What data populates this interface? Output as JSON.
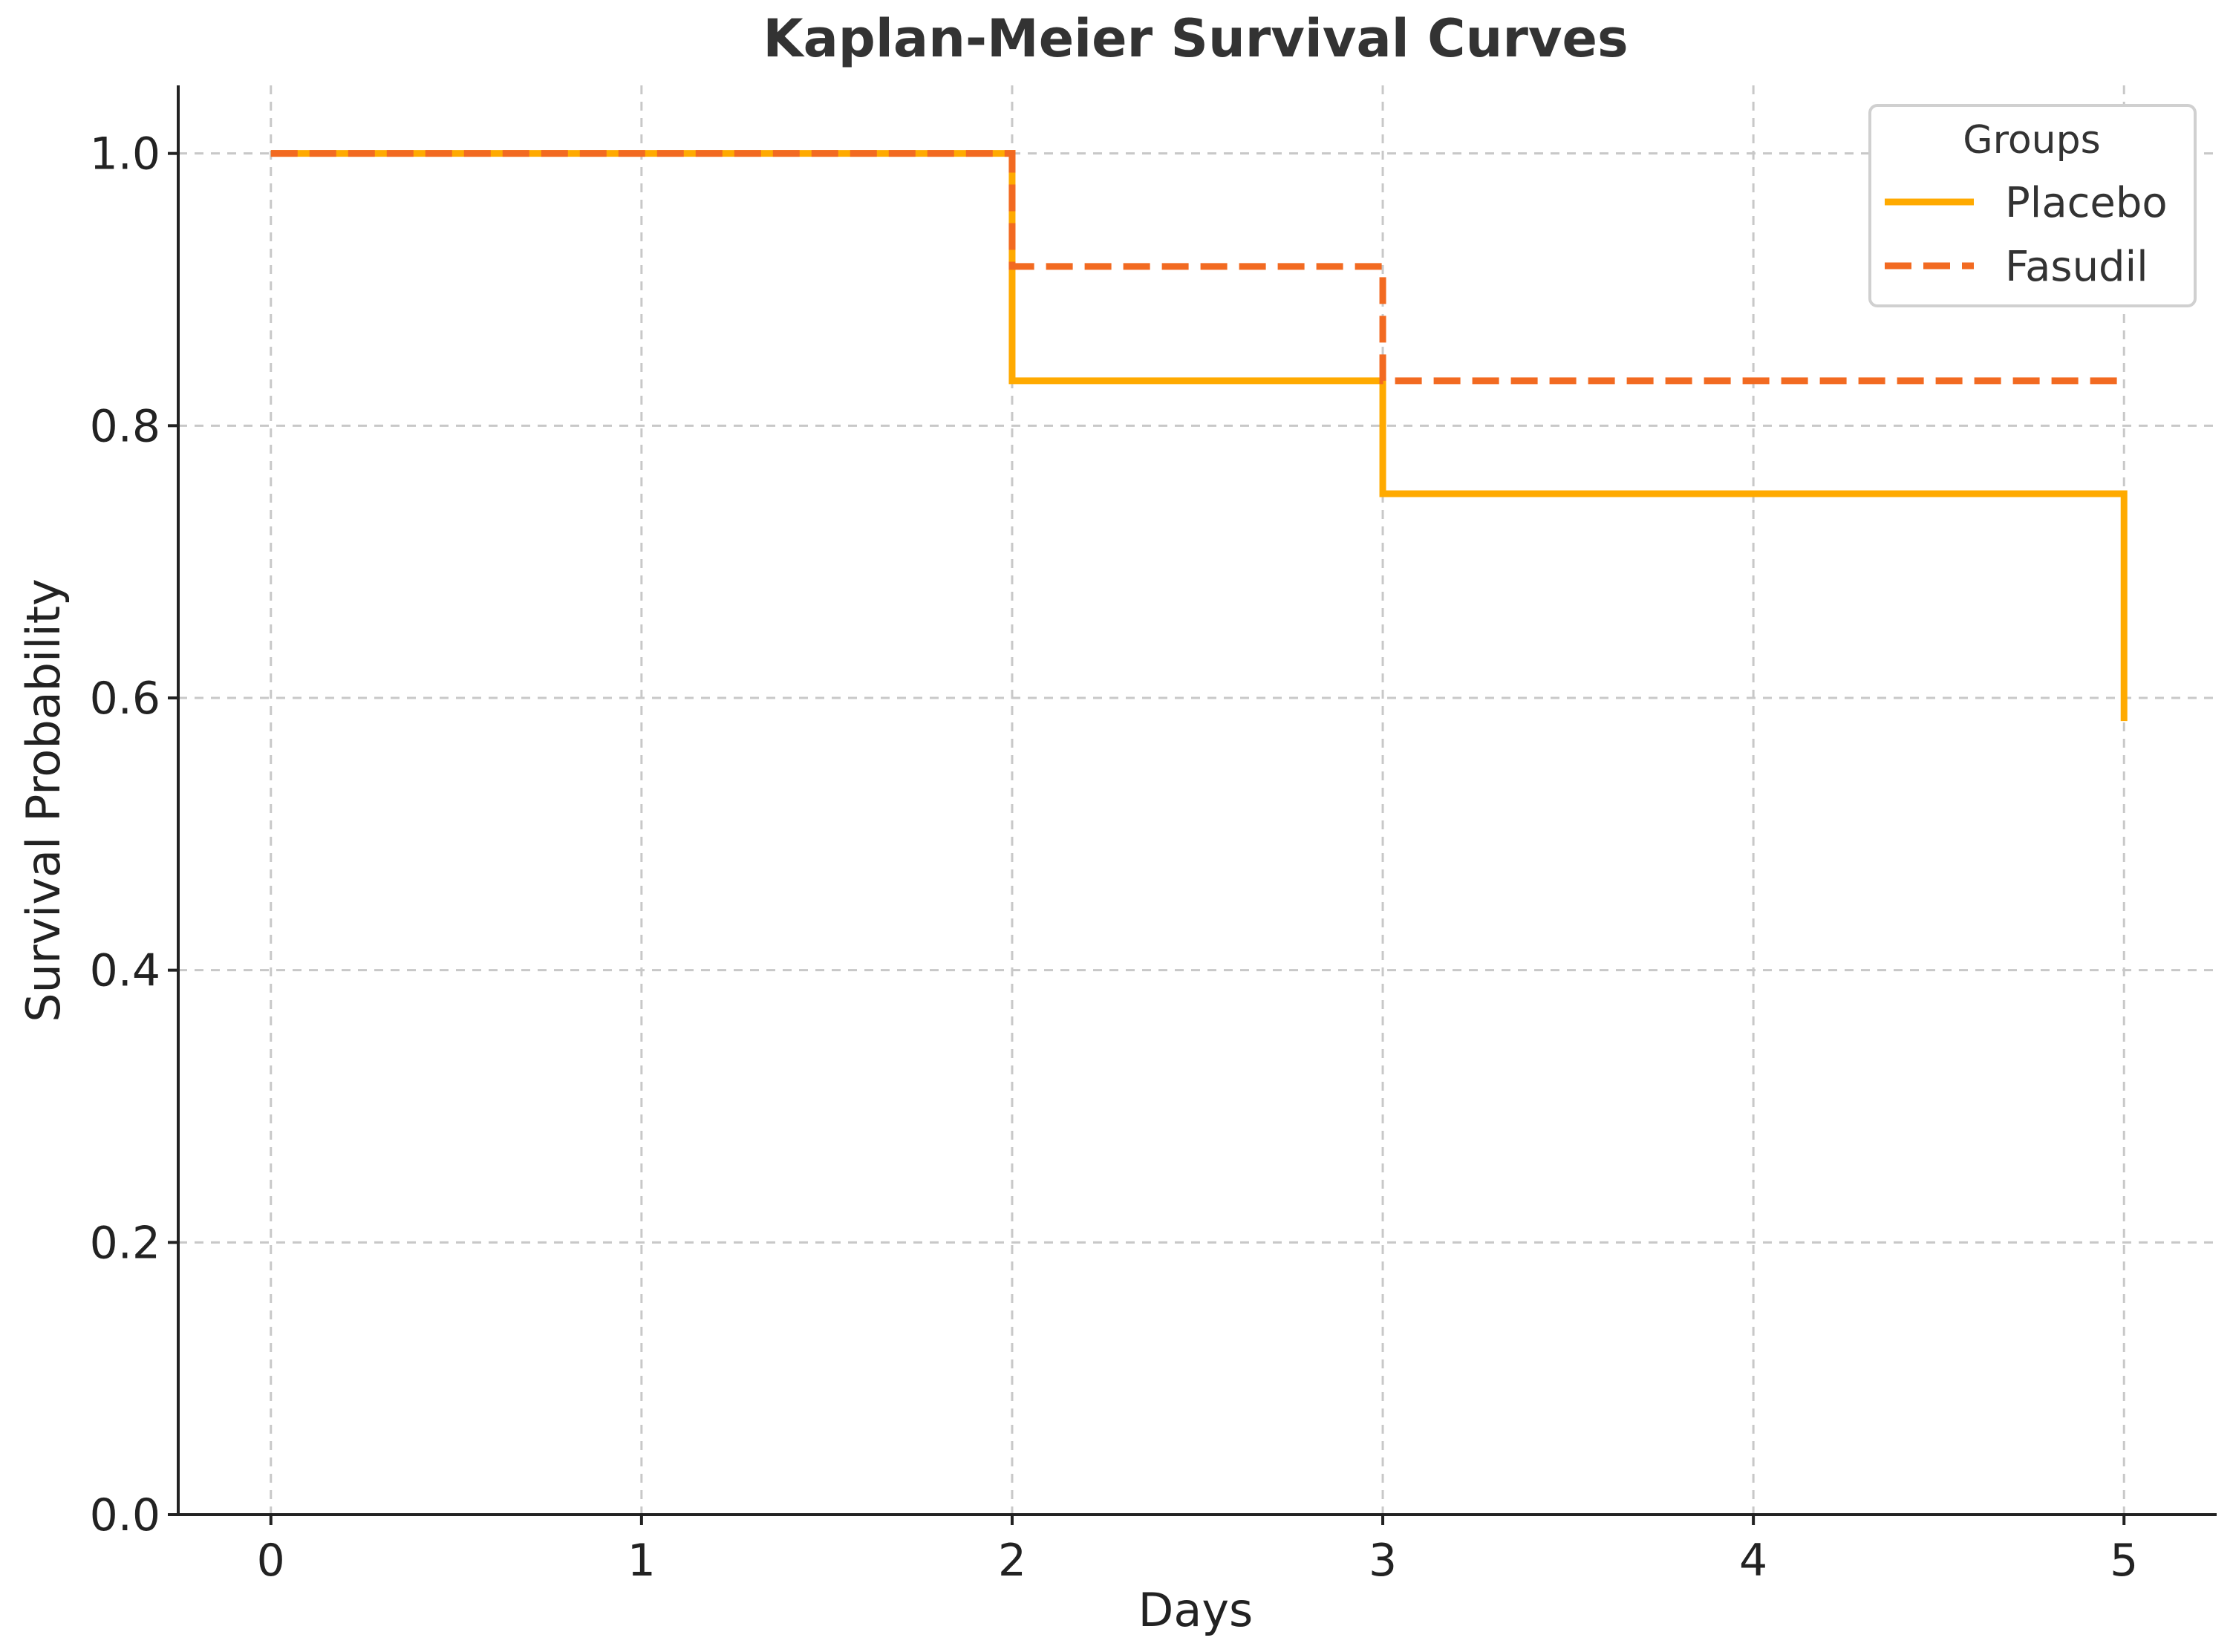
{
  "chart_data": {
    "type": "line",
    "title": "Kaplan-Meier Survival Curves",
    "xlabel": "Days",
    "ylabel": "Survival Probability",
    "xlim": [
      -0.25,
      5.25
    ],
    "ylim": [
      0.0,
      1.05
    ],
    "xticks": [
      0,
      1,
      2,
      3,
      4,
      5
    ],
    "xtick_labels": [
      "0",
      "1",
      "2",
      "3",
      "4",
      "5"
    ],
    "yticks": [
      0.0,
      0.2,
      0.4,
      0.6,
      0.8,
      1.0
    ],
    "ytick_labels": [
      "0.0",
      "0.2",
      "0.4",
      "0.6",
      "0.8",
      "1.0"
    ],
    "grid": true,
    "step": "post",
    "legend": {
      "title": "Groups",
      "placement": "top-right"
    },
    "series": [
      {
        "name": "Placebo",
        "color": "#FFAA00",
        "style": "solid",
        "x": [
          0,
          2,
          3,
          5,
          5
        ],
        "y": [
          1.0,
          0.833,
          0.75,
          0.75,
          0.583
        ]
      },
      {
        "name": "Fasudil",
        "color": "#F26A21",
        "style": "dashed",
        "x": [
          0,
          2,
          3,
          5
        ],
        "y": [
          1.0,
          0.917,
          0.833,
          0.833
        ]
      }
    ]
  }
}
